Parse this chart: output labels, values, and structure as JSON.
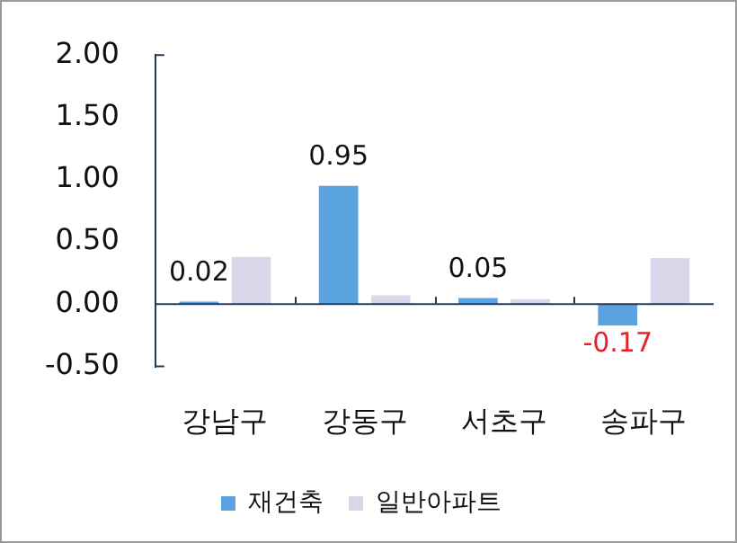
{
  "chart_data": {
    "type": "bar",
    "categories": [
      "강남구",
      "강동구",
      "서초구",
      "송파구"
    ],
    "series": [
      {
        "name": "재건축",
        "color": "#5ba3e0",
        "values": [
          0.02,
          0.95,
          0.05,
          -0.17
        ],
        "value_labels": [
          "0.02",
          "0.95",
          "0.05",
          "-0.17"
        ]
      },
      {
        "name": "일반아파트",
        "color": "#dcd6ea",
        "values": [
          0.38,
          0.07,
          0.04,
          0.37
        ]
      }
    ],
    "ylim": [
      -0.5,
      2.0
    ],
    "yticks": [
      {
        "value": -0.5,
        "label": "-0.50"
      },
      {
        "value": 0,
        "label": "0.00"
      },
      {
        "value": 0.5,
        "label": "0.50"
      },
      {
        "value": 1,
        "label": "1.00"
      },
      {
        "value": 1.5,
        "label": "1.50"
      },
      {
        "value": 2,
        "label": "2.00"
      }
    ],
    "grid": false,
    "legend": "bottom"
  }
}
